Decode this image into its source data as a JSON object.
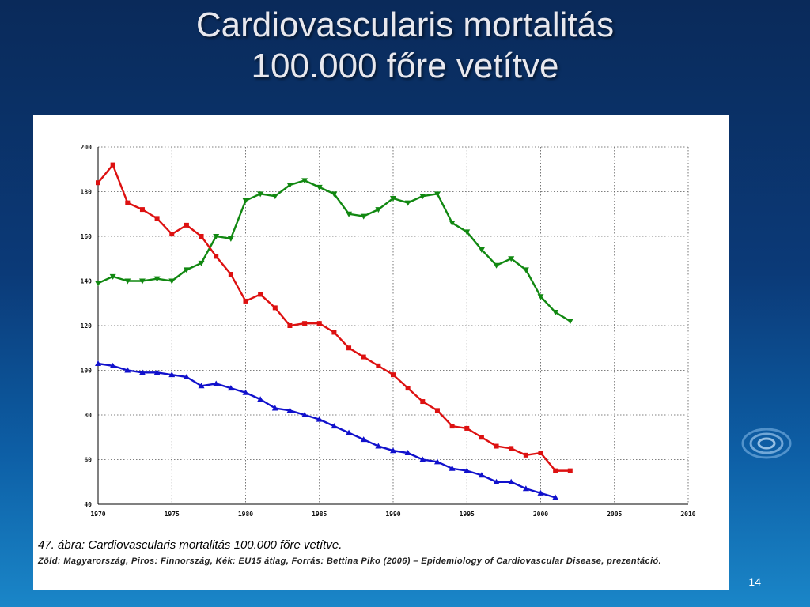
{
  "slide": {
    "title_line1": "Cardiovascularis mortalitás",
    "title_line2": "100.000 főre vetítve",
    "page_number": "14"
  },
  "caption": {
    "main": "47. ábra: Cardiovascularis mortalitás 100.000 főre vetítve.",
    "source": "Zöld: Magyarország, Piros: Finnország, Kék: EU15 átlag, Forrás: Bettina Piko (2006) – Epidemiology of Cardiovascular Disease, prezentáció."
  },
  "chart_data": {
    "type": "line",
    "xlim": [
      1970,
      2010
    ],
    "ylim": [
      40,
      200
    ],
    "x_ticks": [
      1970,
      1975,
      1980,
      1985,
      1990,
      1995,
      2000,
      2005,
      2010
    ],
    "y_ticks": [
      40,
      60,
      80,
      100,
      120,
      140,
      160,
      180,
      200
    ],
    "grid": true,
    "series": [
      {
        "color": "#118811",
        "marker": "triangle-down",
        "x": [
          1970,
          1971,
          1972,
          1973,
          1974,
          1975,
          1976,
          1977,
          1978,
          1979,
          1980,
          1981,
          1982,
          1983,
          1984,
          1985,
          1986,
          1987,
          1988,
          1989,
          1990,
          1991,
          1992,
          1993,
          1994,
          1995,
          1996,
          1997,
          1998,
          1999,
          2000,
          2001,
          2002
        ],
        "values": [
          139,
          142,
          140,
          140,
          141,
          140,
          145,
          148,
          160,
          159,
          176,
          179,
          178,
          183,
          185,
          182,
          179,
          170,
          169,
          172,
          177,
          175,
          178,
          179,
          166,
          162,
          154,
          147,
          150,
          145,
          133,
          126,
          122
        ]
      },
      {
        "color": "#dd1111",
        "marker": "square",
        "x": [
          1970,
          1971,
          1972,
          1973,
          1974,
          1975,
          1976,
          1977,
          1978,
          1979,
          1980,
          1981,
          1982,
          1983,
          1984,
          1985,
          1986,
          1987,
          1988,
          1989,
          1990,
          1991,
          1992,
          1993,
          1994,
          1995,
          1996,
          1997,
          1998,
          1999,
          2000,
          2001,
          2002
        ],
        "values": [
          184,
          192,
          175,
          172,
          168,
          161,
          165,
          160,
          151,
          143,
          131,
          134,
          128,
          120,
          121,
          121,
          117,
          110,
          106,
          102,
          98,
          92,
          86,
          82,
          75,
          74,
          70,
          66,
          65,
          62,
          63,
          55,
          55
        ]
      },
      {
        "color": "#1111cc",
        "marker": "triangle-up",
        "x": [
          1970,
          1971,
          1972,
          1973,
          1974,
          1975,
          1976,
          1977,
          1978,
          1979,
          1980,
          1981,
          1982,
          1983,
          1984,
          1985,
          1986,
          1987,
          1988,
          1989,
          1990,
          1991,
          1992,
          1993,
          1994,
          1995,
          1996,
          1997,
          1998,
          1999,
          2000,
          2001
        ],
        "values": [
          103,
          102,
          100,
          99,
          99,
          98,
          97,
          93,
          94,
          92,
          90,
          87,
          83,
          82,
          80,
          78,
          75,
          72,
          69,
          66,
          64,
          63,
          60,
          59,
          56,
          55,
          53,
          50,
          50,
          47,
          45,
          43
        ]
      }
    ]
  }
}
